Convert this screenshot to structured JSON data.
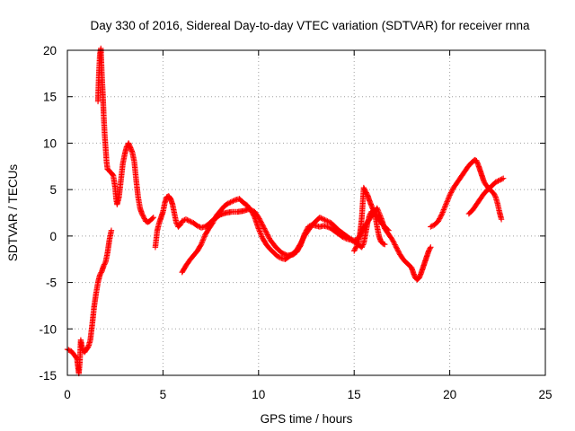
{
  "chart_data": {
    "type": "scatter",
    "title": "Day 330 of 2016, Sidereal Day-to-day VTEC variation (SDTVAR) for receiver rnna",
    "xlabel": "GPS time / hours",
    "ylabel": "SDTVAR / TECUs",
    "xlim": [
      0,
      25
    ],
    "ylim": [
      -15,
      20
    ],
    "xticks": [
      0,
      5,
      10,
      15,
      20,
      25
    ],
    "yticks": [
      -15,
      -10,
      -5,
      0,
      5,
      10,
      15,
      20
    ],
    "xtick_labels": [
      "0",
      "5",
      "10",
      "15",
      "20",
      "25"
    ],
    "ytick_labels": [
      "-15",
      "-10",
      "-5",
      "0",
      "5",
      "10",
      "15",
      "20"
    ],
    "grid": true,
    "marker": "+",
    "color": "#ff0000",
    "series": [
      {
        "name": "s1",
        "points": [
          [
            0,
            -12.2
          ],
          [
            0.2,
            -12.4
          ],
          [
            0.4,
            -12.9
          ],
          [
            0.5,
            -13.2
          ],
          [
            0.55,
            -14.0
          ],
          [
            0.6,
            -14.8
          ],
          [
            0.65,
            -13.6
          ],
          [
            0.7,
            -11.2
          ],
          [
            0.8,
            -12.3
          ],
          [
            0.9,
            -12.5
          ],
          [
            1.0,
            -12.2
          ],
          [
            1.1,
            -11.9
          ],
          [
            1.2,
            -11.2
          ],
          [
            1.3,
            -9.5
          ],
          [
            1.4,
            -7.6
          ],
          [
            1.5,
            -6.2
          ],
          [
            1.6,
            -5.0
          ],
          [
            1.7,
            -4.2
          ],
          [
            1.8,
            -3.8
          ],
          [
            1.9,
            -3.2
          ],
          [
            2.0,
            -2.8
          ],
          [
            2.1,
            -1.8
          ],
          [
            2.2,
            -0.4
          ],
          [
            2.3,
            0.6
          ]
        ]
      },
      {
        "name": "s2",
        "points": [
          [
            1.6,
            14.5
          ],
          [
            1.65,
            17.5
          ],
          [
            1.7,
            19.5
          ],
          [
            1.75,
            20.2
          ],
          [
            1.8,
            17.5
          ],
          [
            1.85,
            15.5
          ],
          [
            1.9,
            13.0
          ],
          [
            1.95,
            11.0
          ],
          [
            2.0,
            9.5
          ],
          [
            2.05,
            8.0
          ],
          [
            2.1,
            7.2
          ],
          [
            2.2,
            7.0
          ],
          [
            2.3,
            6.8
          ],
          [
            2.4,
            6.5
          ],
          [
            2.5,
            5.2
          ],
          [
            2.55,
            4.0
          ],
          [
            2.6,
            3.4
          ],
          [
            2.7,
            4.2
          ],
          [
            2.8,
            6.0
          ],
          [
            2.9,
            7.8
          ],
          [
            3.0,
            8.8
          ],
          [
            3.1,
            9.6
          ],
          [
            3.2,
            10.0
          ],
          [
            3.3,
            9.5
          ],
          [
            3.4,
            9.0
          ],
          [
            3.5,
            8.0
          ],
          [
            3.6,
            6.0
          ],
          [
            3.7,
            4.2
          ],
          [
            3.8,
            3.0
          ],
          [
            3.9,
            2.4
          ],
          [
            4.0,
            2.0
          ],
          [
            4.1,
            1.6
          ],
          [
            4.2,
            1.5
          ],
          [
            4.3,
            1.6
          ],
          [
            4.4,
            1.8
          ],
          [
            4.5,
            2.0
          ]
        ]
      },
      {
        "name": "s3",
        "points": [
          [
            4.6,
            -1.2
          ],
          [
            4.7,
            0.6
          ],
          [
            4.8,
            1.4
          ],
          [
            4.9,
            2.0
          ],
          [
            5.0,
            2.6
          ],
          [
            5.1,
            3.6
          ],
          [
            5.2,
            4.2
          ],
          [
            5.3,
            4.3
          ],
          [
            5.4,
            4.0
          ],
          [
            5.5,
            3.4
          ],
          [
            5.6,
            2.4
          ],
          [
            5.7,
            1.4
          ],
          [
            5.8,
            1.0
          ],
          [
            5.9,
            1.2
          ],
          [
            6.0,
            1.6
          ],
          [
            6.2,
            1.8
          ],
          [
            6.4,
            1.6
          ],
          [
            6.6,
            1.4
          ],
          [
            6.8,
            1.1
          ],
          [
            7.0,
            0.9
          ],
          [
            7.2,
            1.0
          ],
          [
            7.4,
            1.3
          ],
          [
            7.6,
            1.7
          ],
          [
            7.8,
            2.0
          ],
          [
            8.0,
            2.3
          ],
          [
            8.3,
            2.5
          ],
          [
            8.6,
            2.6
          ],
          [
            8.9,
            2.6
          ],
          [
            9.2,
            2.7
          ],
          [
            9.5,
            2.9
          ],
          [
            9.8,
            2.6
          ],
          [
            10.0,
            2.0
          ],
          [
            10.3,
            0.8
          ],
          [
            10.6,
            -0.4
          ],
          [
            10.9,
            -1.2
          ],
          [
            11.2,
            -1.8
          ],
          [
            11.5,
            -2.1
          ],
          [
            11.8,
            -2.0
          ],
          [
            12.0,
            -1.7
          ],
          [
            12.2,
            -1.0
          ],
          [
            12.4,
            0.2
          ],
          [
            12.6,
            1.0
          ],
          [
            12.8,
            1.2
          ],
          [
            13.0,
            1.1
          ],
          [
            13.2,
            1.0
          ],
          [
            13.4,
            1.1
          ],
          [
            13.6,
            1.0
          ],
          [
            13.8,
            0.8
          ],
          [
            14.0,
            0.5
          ],
          [
            14.2,
            0.2
          ],
          [
            14.4,
            -0.1
          ],
          [
            14.6,
            -0.3
          ],
          [
            14.8,
            -0.4
          ],
          [
            15.0,
            -0.6
          ],
          [
            15.2,
            -0.9
          ],
          [
            15.4,
            -1.2
          ],
          [
            15.5,
            -0.8
          ],
          [
            15.6,
            0.3
          ],
          [
            15.7,
            1.4
          ],
          [
            15.8,
            2.2
          ],
          [
            15.9,
            2.6
          ],
          [
            16.0,
            2.7
          ],
          [
            16.1,
            2.2
          ],
          [
            16.2,
            1.0
          ],
          [
            16.3,
            0
          ],
          [
            16.4,
            -0.6
          ],
          [
            16.5,
            -0.8
          ],
          [
            16.6,
            -0.9
          ]
        ]
      },
      {
        "name": "s4",
        "points": [
          [
            6.0,
            -3.9
          ],
          [
            6.2,
            -3.2
          ],
          [
            6.4,
            -2.6
          ],
          [
            6.6,
            -2.1
          ],
          [
            6.8,
            -1.6
          ],
          [
            7.0,
            -0.9
          ],
          [
            7.2,
            0.1
          ],
          [
            7.4,
            0.8
          ],
          [
            7.6,
            1.4
          ],
          [
            7.8,
            2.2
          ],
          [
            8.0,
            2.7
          ],
          [
            8.2,
            3.2
          ],
          [
            8.4,
            3.5
          ],
          [
            8.6,
            3.7
          ],
          [
            8.8,
            3.9
          ],
          [
            9.0,
            4.0
          ],
          [
            9.2,
            3.6
          ],
          [
            9.4,
            3.3
          ],
          [
            9.6,
            2.8
          ],
          [
            9.8,
            2.0
          ],
          [
            10.0,
            0.8
          ],
          [
            10.2,
            -0.2
          ],
          [
            10.4,
            -0.9
          ],
          [
            10.6,
            -1.4
          ],
          [
            10.8,
            -1.8
          ],
          [
            11.0,
            -2.2
          ],
          [
            11.2,
            -2.4
          ],
          [
            11.4,
            -2.5
          ],
          [
            11.6,
            -2.2
          ],
          [
            11.8,
            -1.9
          ],
          [
            12.0,
            -1.5
          ],
          [
            12.2,
            -0.8
          ],
          [
            12.4,
            0
          ],
          [
            12.6,
            0.6
          ],
          [
            12.8,
            1.2
          ],
          [
            13.0,
            1.6
          ],
          [
            13.2,
            2.0
          ],
          [
            13.4,
            1.8
          ],
          [
            13.6,
            1.6
          ],
          [
            13.8,
            1.4
          ],
          [
            14.0,
            1.0
          ],
          [
            14.2,
            0.6
          ],
          [
            14.4,
            0.3
          ],
          [
            14.6,
            0
          ],
          [
            14.8,
            -0.3
          ],
          [
            15.0,
            -0.5
          ],
          [
            15.2,
            -0.3
          ],
          [
            15.4,
            0.4
          ],
          [
            15.6,
            1.2
          ],
          [
            15.8,
            1.8
          ],
          [
            16.0,
            2.4
          ],
          [
            16.2,
            3.0
          ],
          [
            16.4,
            2.0
          ],
          [
            16.6,
            0.8
          ],
          [
            16.8,
            0.2
          ],
          [
            17.0,
            -0.4
          ],
          [
            17.2,
            -1.2
          ],
          [
            17.4,
            -2.0
          ],
          [
            17.6,
            -2.6
          ],
          [
            17.8,
            -3.0
          ],
          [
            18.0,
            -3.4
          ],
          [
            18.1,
            -4.0
          ],
          [
            18.2,
            -4.5
          ],
          [
            18.3,
            -4.7
          ],
          [
            18.4,
            -4.5
          ],
          [
            18.5,
            -4.0
          ],
          [
            18.6,
            -3.4
          ],
          [
            18.7,
            -2.8
          ],
          [
            18.8,
            -2.2
          ],
          [
            18.9,
            -1.6
          ],
          [
            19.0,
            -1.2
          ]
        ]
      },
      {
        "name": "s5",
        "points": [
          [
            15.0,
            -1.6
          ],
          [
            15.1,
            -1.2
          ],
          [
            15.2,
            -0.8
          ],
          [
            15.3,
            0.2
          ],
          [
            15.35,
            1.0
          ],
          [
            15.4,
            2.0
          ],
          [
            15.5,
            5.2
          ],
          [
            15.6,
            4.8
          ],
          [
            15.7,
            4.4
          ],
          [
            15.8,
            3.8
          ],
          [
            15.9,
            3.3
          ],
          [
            16.0,
            2.8
          ],
          [
            16.1,
            2.4
          ],
          [
            16.2,
            2.1
          ],
          [
            16.3,
            1.8
          ],
          [
            16.4,
            1.5
          ],
          [
            16.5,
            1.2
          ],
          [
            16.6,
            1.0
          ],
          [
            16.7,
            0.8
          ],
          [
            16.8,
            0.6
          ]
        ]
      },
      {
        "name": "s6",
        "points": [
          [
            19.0,
            1.0
          ],
          [
            19.2,
            1.2
          ],
          [
            19.4,
            1.6
          ],
          [
            19.6,
            2.4
          ],
          [
            19.8,
            3.4
          ],
          [
            20.0,
            4.4
          ],
          [
            20.2,
            5.2
          ],
          [
            20.4,
            5.8
          ],
          [
            20.6,
            6.4
          ],
          [
            20.8,
            7.0
          ],
          [
            21.0,
            7.6
          ],
          [
            21.2,
            8.0
          ],
          [
            21.3,
            8.2
          ],
          [
            21.4,
            8.1
          ],
          [
            21.5,
            7.6
          ],
          [
            21.6,
            7.0
          ],
          [
            21.7,
            6.4
          ],
          [
            21.8,
            5.8
          ],
          [
            22.0,
            5.2
          ],
          [
            22.1,
            5.0
          ],
          [
            22.2,
            4.8
          ],
          [
            22.3,
            4.6
          ],
          [
            22.4,
            4.2
          ],
          [
            22.5,
            3.5
          ],
          [
            22.6,
            2.6
          ],
          [
            22.7,
            1.8
          ]
        ]
      },
      {
        "name": "s7",
        "points": [
          [
            21.0,
            2.4
          ],
          [
            21.2,
            2.8
          ],
          [
            21.4,
            3.4
          ],
          [
            21.6,
            4.0
          ],
          [
            21.8,
            4.6
          ],
          [
            22.0,
            5.0
          ],
          [
            22.2,
            5.4
          ],
          [
            22.4,
            5.8
          ],
          [
            22.6,
            6.0
          ],
          [
            22.8,
            6.2
          ]
        ]
      }
    ]
  }
}
